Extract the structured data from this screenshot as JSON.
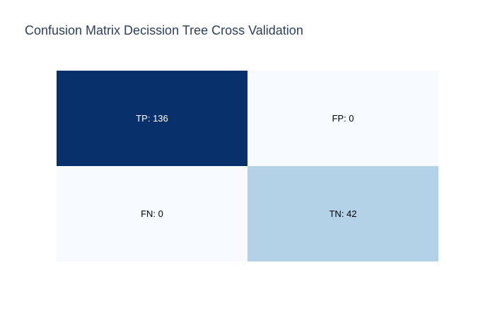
{
  "chart_data": {
    "type": "heatmap",
    "title": "Confusion Matrix Decission Tree Cross Validation",
    "rows": [
      {
        "cells": [
          {
            "label": "TP",
            "value": 136,
            "text": "TP: 136",
            "color": "#08306b",
            "text_color": "#ffffff"
          },
          {
            "label": "FP",
            "value": 0,
            "text": "FP: 0",
            "color": "#f7fbff",
            "text_color": "#000000"
          }
        ]
      },
      {
        "cells": [
          {
            "label": "FN",
            "value": 0,
            "text": "FN: 0",
            "color": "#f7fbff",
            "text_color": "#000000"
          },
          {
            "label": "TN",
            "value": 42,
            "text": "TN: 42",
            "color": "#b3d2e8",
            "text_color": "#000000"
          }
        ]
      }
    ],
    "colorscale": "Blues",
    "zmin": 0,
    "zmax": 136,
    "grid": false,
    "show_axes": false,
    "show_legend": false
  }
}
